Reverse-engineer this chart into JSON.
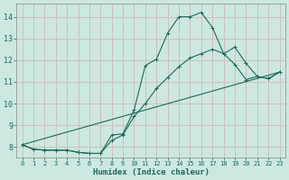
{
  "xlabel": "Humidex (Indice chaleur)",
  "bg_color": "#cce8e0",
  "grid_color": "#b8d4cc",
  "line_color": "#1a6b5a",
  "xlim": [
    -0.5,
    23.5
  ],
  "ylim": [
    7.5,
    14.6
  ],
  "xticks": [
    0,
    1,
    2,
    3,
    4,
    5,
    6,
    7,
    8,
    9,
    10,
    11,
    12,
    13,
    14,
    15,
    16,
    17,
    18,
    19,
    20,
    21,
    22,
    23
  ],
  "yticks": [
    8,
    9,
    10,
    11,
    12,
    13,
    14
  ],
  "line1_x": [
    0,
    1,
    2,
    3,
    4,
    5,
    6,
    7,
    8,
    9,
    10,
    11,
    12,
    13,
    14,
    15,
    16,
    17,
    18,
    19,
    20,
    21,
    22,
    23
  ],
  "line1_y": [
    8.1,
    7.9,
    7.85,
    7.85,
    7.85,
    7.75,
    7.7,
    7.7,
    8.55,
    8.6,
    9.7,
    11.75,
    12.05,
    13.25,
    14.0,
    14.0,
    14.2,
    13.5,
    12.3,
    12.6,
    11.85,
    11.25,
    11.15,
    11.45
  ],
  "line2_x": [
    0,
    1,
    2,
    3,
    4,
    5,
    6,
    7,
    8,
    9,
    10,
    11,
    12,
    13,
    14,
    15,
    16,
    17,
    18,
    19,
    20,
    21,
    22,
    23
  ],
  "line2_y": [
    8.1,
    7.9,
    7.85,
    7.85,
    7.85,
    7.75,
    7.7,
    7.7,
    8.3,
    8.55,
    9.4,
    10.0,
    10.7,
    11.2,
    11.7,
    12.1,
    12.3,
    12.5,
    12.3,
    11.8,
    11.1,
    11.25,
    11.15,
    11.45
  ],
  "line3_x": [
    0,
    23
  ],
  "line3_y": [
    8.1,
    11.45
  ]
}
